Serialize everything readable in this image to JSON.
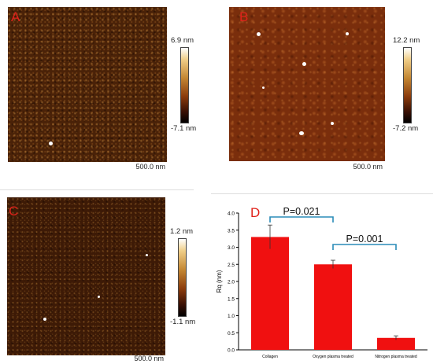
{
  "panels": {
    "a": {
      "letter": "A",
      "scale": "500.0 nm",
      "cbar_max": "6.9 nm",
      "cbar_min": "-7.1 nm"
    },
    "b": {
      "letter": "B",
      "scale": "500.0 nm",
      "cbar_max": "12.2 nm",
      "cbar_min": "-7.2 nm"
    },
    "c": {
      "letter": "C",
      "scale": "500.0 nm",
      "cbar_max": "1.2 nm",
      "cbar_min": "-1.1 nm"
    },
    "d": {
      "letter": "D"
    }
  },
  "colors": {
    "bar": "#f01010",
    "bracket": "#2a8cb8",
    "letter": "#e0231b"
  },
  "chart_data": {
    "type": "bar",
    "categories": [
      "Collagen",
      "Oxygen plasma treated",
      "Nitrogen plasma treated"
    ],
    "values": [
      3.3,
      2.5,
      0.35
    ],
    "errors": [
      0.35,
      0.12,
      0.06
    ],
    "title": "",
    "xlabel": "",
    "ylabel": "Rq (nm)",
    "ylim": [
      0,
      4.0
    ],
    "yticks": [
      "0.0",
      "0.5",
      "1.0",
      "1.5",
      "2.0",
      "2.5",
      "3.0",
      "3.5",
      "4.0"
    ],
    "annotations": [
      {
        "label": "P=0.021",
        "from": 0,
        "to": 1
      },
      {
        "label": "P=0.001",
        "from": 1,
        "to": 2
      }
    ]
  }
}
